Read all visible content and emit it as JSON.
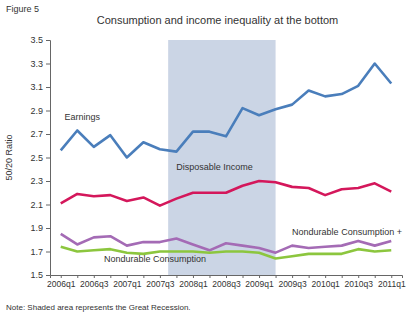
{
  "chart_data": {
    "type": "line",
    "figure_label": "Figure 5",
    "title": "Consumption and income inequality at the bottom",
    "y_label": "50/20 Ratio",
    "note": "Note: Shaded area represents the Great Recession.",
    "categories": [
      "2006q1",
      null,
      "2006q3",
      null,
      "2007q1",
      null,
      "2007q3",
      null,
      "2008q1",
      null,
      "2008q3",
      null,
      "2009q1",
      null,
      "2009q3",
      null,
      "2010q1",
      null,
      "2010q3",
      null,
      "2011q1"
    ],
    "shaded_range": [
      7,
      13
    ],
    "ylim": [
      1.5,
      3.5
    ],
    "yticks": [
      1.5,
      1.7,
      1.9,
      2.1,
      2.3,
      2.5,
      2.7,
      2.9,
      3.1,
      3.3,
      3.5
    ],
    "grid": false,
    "series": [
      {
        "name": "Earnings",
        "color": "#4a7ebb",
        "values": [
          2.56,
          2.73,
          2.59,
          2.69,
          2.5,
          2.63,
          2.57,
          2.55,
          2.72,
          2.72,
          2.68,
          2.92,
          2.86,
          2.91,
          2.95,
          3.07,
          3.02,
          3.04,
          3.11,
          3.3,
          3.13
        ]
      },
      {
        "name": "Disposable Income",
        "color": "#d4175b",
        "values": [
          2.11,
          2.19,
          2.17,
          2.18,
          2.13,
          2.16,
          2.09,
          2.15,
          2.2,
          2.2,
          2.2,
          2.26,
          2.3,
          2.29,
          2.25,
          2.24,
          2.18,
          2.23,
          2.24,
          2.28,
          2.21
        ]
      },
      {
        "name": "Nondurable Consumption +",
        "color": "#a46bb5",
        "values": [
          1.85,
          1.76,
          1.82,
          1.83,
          1.75,
          1.78,
          1.78,
          1.81,
          1.76,
          1.71,
          1.77,
          1.75,
          1.73,
          1.69,
          1.75,
          1.73,
          1.74,
          1.75,
          1.79,
          1.75,
          1.79
        ]
      },
      {
        "name": "Nondurable Consumption",
        "color": "#8cc63e",
        "values": [
          1.74,
          1.7,
          1.71,
          1.72,
          1.69,
          1.68,
          1.7,
          1.7,
          1.7,
          1.69,
          1.7,
          1.7,
          1.69,
          1.64,
          1.66,
          1.68,
          1.68,
          1.68,
          1.72,
          1.7,
          1.71
        ]
      }
    ]
  }
}
